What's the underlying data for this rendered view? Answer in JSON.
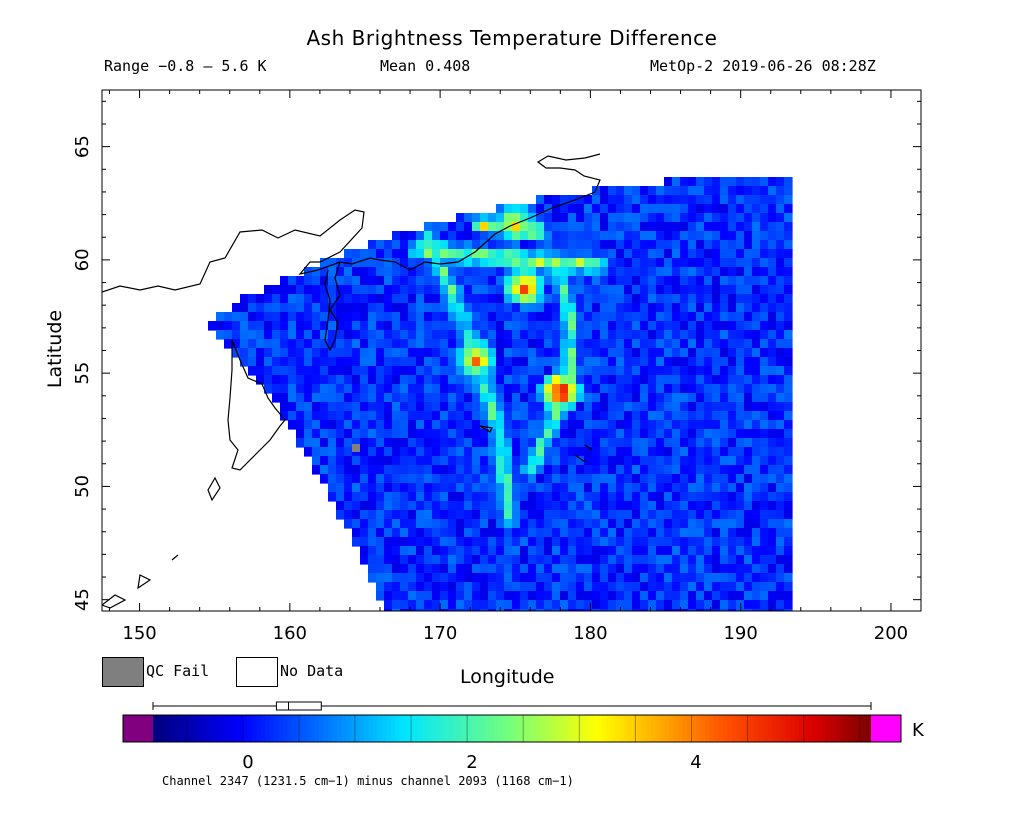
{
  "header": {
    "title": "Ash Brightness Temperature Difference",
    "range": "Range −0.8 – 5.6 K",
    "mean": "Mean 0.408",
    "satellite": "MetOp-2 2019-06-26 08:28Z"
  },
  "map": {
    "xlabel": "Longitude",
    "ylabel": "Latitude",
    "xlim": [
      147.5,
      202
    ],
    "ylim": [
      44.5,
      67.5
    ],
    "xticks": [
      150,
      160,
      170,
      180,
      190,
      200
    ],
    "yticks": [
      45,
      50,
      55,
      60,
      65
    ],
    "background_field": "ash brightness temperature difference swath",
    "hotspots": [
      {
        "lon": 178.0,
        "lat": 54.2,
        "value": 5.6
      },
      {
        "lon": 172.4,
        "lat": 55.6,
        "value": 4.2
      },
      {
        "lon": 175.0,
        "lat": 61.6,
        "value": 3.8
      },
      {
        "lon": 175.6,
        "lat": 58.8,
        "value": 4.8
      }
    ]
  },
  "legend": {
    "qc_fail": "QC Fail",
    "no_data": "No Data",
    "qc_color": "#7f7f7f",
    "nodata_color": "#ffffff"
  },
  "colorbar": {
    "unit": "K",
    "ticks": [
      "0",
      "2",
      "4"
    ],
    "tick_values": [
      0,
      2,
      4
    ],
    "vmin": -0.8,
    "vmax": 5.6,
    "under_color": "#800080",
    "over_color": "#ff00ff",
    "caption": "Channel 2347 (1231.5 cm−1) minus channel 2093 (1168 cm−1)"
  },
  "chart_data": {
    "type": "heatmap",
    "title": "Ash Brightness Temperature Difference",
    "xlabel": "Longitude",
    "ylabel": "Latitude",
    "xlim": [
      147.5,
      202
    ],
    "ylim": [
      44.5,
      67.5
    ],
    "colorbar_range": [
      -0.8,
      5.6
    ],
    "colorbar_unit": "K",
    "mean": 0.408
  }
}
